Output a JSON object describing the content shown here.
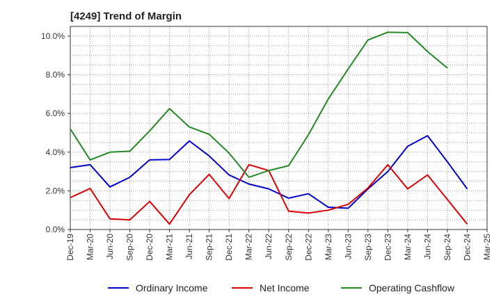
{
  "chart_data": {
    "type": "line",
    "title": "[4249]  Trend of Margin",
    "xlabel": "",
    "ylabel": "",
    "ylim": [
      0,
      10.5
    ],
    "ytick_values": [
      0,
      2,
      4,
      6,
      8,
      10
    ],
    "ytick_labels": [
      "0.0%",
      "2.0%",
      "4.0%",
      "6.0%",
      "8.0%",
      "10.0%"
    ],
    "grid": true,
    "legend_position": "bottom",
    "categories": [
      "Dec-19",
      "Mar-20",
      "Jun-20",
      "Sep-20",
      "Dec-20",
      "Mar-21",
      "Jun-21",
      "Sep-21",
      "Dec-21",
      "Mar-22",
      "Jun-22",
      "Sep-22",
      "Dec-22",
      "Mar-23",
      "Jun-23",
      "Sep-23",
      "Dec-23",
      "Mar-24",
      "Jun-24",
      "Sep-24",
      "Dec-24",
      "Mar-25"
    ],
    "series": [
      {
        "name": "Ordinary Income",
        "color": "#0000cc",
        "values": [
          3.2,
          3.35,
          2.2,
          2.7,
          3.6,
          3.62,
          4.58,
          3.8,
          2.82,
          2.35,
          2.1,
          1.62,
          1.85,
          1.15,
          1.1,
          2.1,
          3.0,
          4.3,
          4.85,
          3.5,
          2.1,
          null
        ]
      },
      {
        "name": "Net Income",
        "color": "#dd0000",
        "values": [
          1.65,
          2.12,
          0.55,
          0.5,
          1.45,
          0.28,
          1.8,
          2.85,
          1.6,
          3.35,
          3.05,
          0.95,
          0.85,
          1.0,
          1.3,
          2.15,
          3.35,
          2.1,
          2.82,
          1.55,
          0.28,
          null
        ]
      },
      {
        "name": "Operating Cashflow",
        "color": "#228822",
        "values": [
          5.2,
          3.6,
          4.0,
          4.05,
          5.1,
          6.25,
          5.3,
          4.92,
          3.95,
          2.7,
          3.05,
          3.3,
          4.9,
          6.75,
          8.3,
          9.8,
          10.2,
          10.18,
          9.2,
          8.35,
          null,
          null
        ]
      }
    ]
  }
}
